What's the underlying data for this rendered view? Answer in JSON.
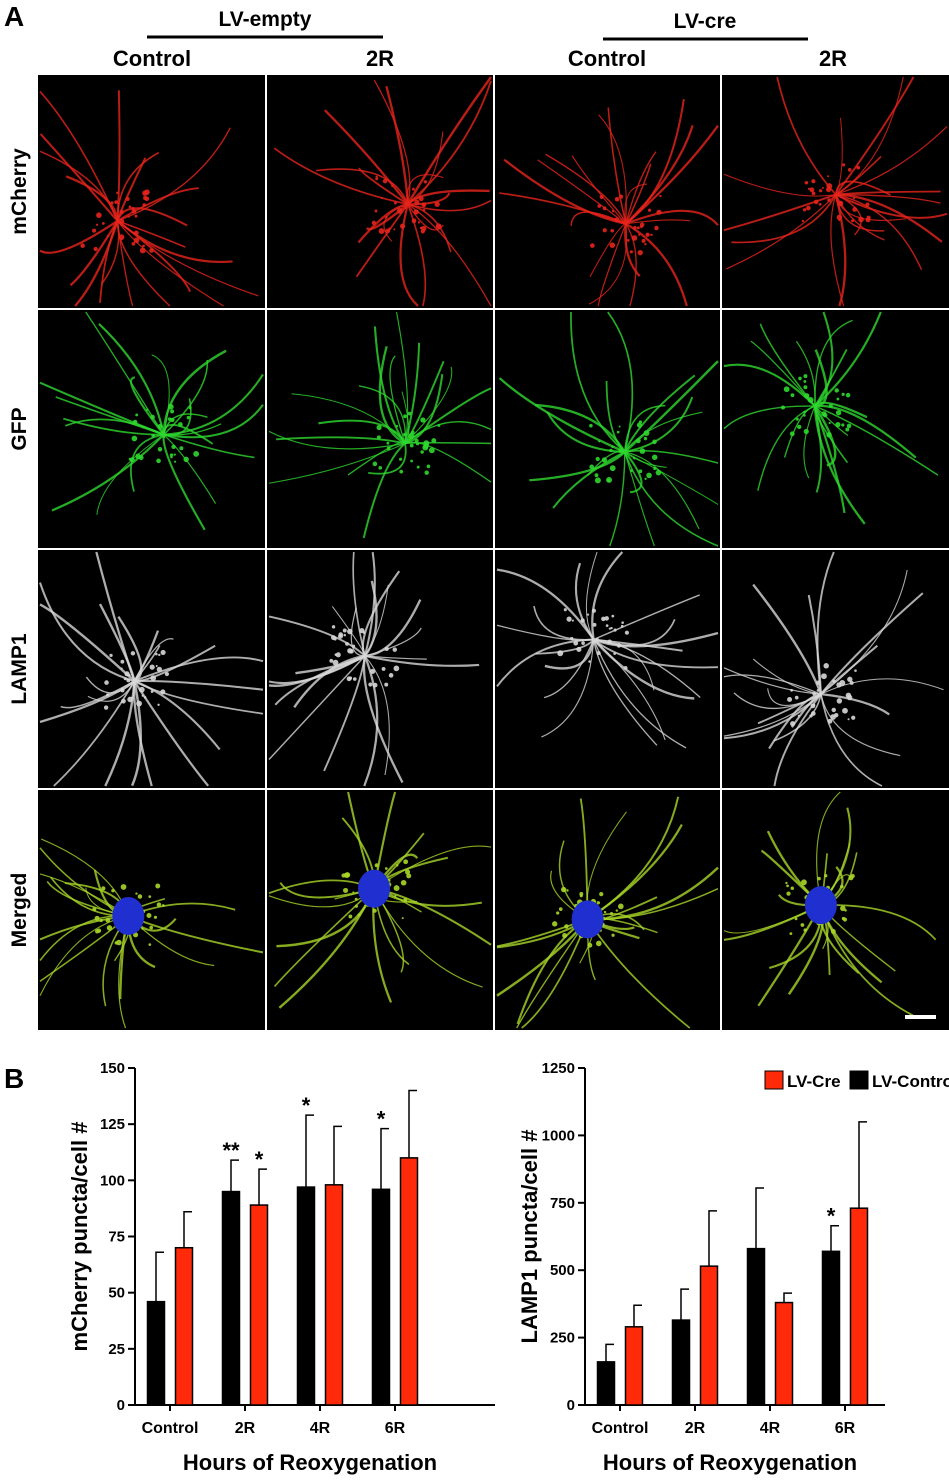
{
  "panel_a": {
    "label": "A",
    "groups": [
      {
        "title": "LV-empty",
        "columns": [
          "Control",
          "2R"
        ]
      },
      {
        "title": "LV-cre",
        "columns": [
          "Control",
          "2R"
        ]
      }
    ],
    "rows": [
      "mCherry",
      "GFP",
      "LAMP1",
      "Merged"
    ]
  },
  "panel_b": {
    "label": "B"
  },
  "chart_data": [
    {
      "type": "bar",
      "ylabel": "mCherry puncta/cell #",
      "xlabel": "Hours of Reoxygenation",
      "categories": [
        "Control",
        "2R",
        "4R",
        "6R"
      ],
      "series": [
        {
          "color": "#000000",
          "values": [
            46,
            95,
            97,
            96
          ],
          "errors": [
            22,
            14,
            32,
            27
          ],
          "annotations": [
            null,
            "**",
            "*",
            "*"
          ]
        },
        {
          "color": "#ff2a0a",
          "values": [
            70,
            89,
            98,
            110
          ],
          "errors": [
            16,
            16,
            26,
            30
          ],
          "annotations": [
            null,
            "*",
            null,
            null
          ]
        }
      ],
      "ylim": [
        0,
        150
      ],
      "yticks": [
        0,
        25,
        50,
        75,
        100,
        125,
        150
      ]
    },
    {
      "type": "bar",
      "ylabel": "LAMP1 puncta/cell #",
      "xlabel": "Hours of Reoxygenation",
      "categories": [
        "Control",
        "2R",
        "4R",
        "6R"
      ],
      "series": [
        {
          "name": "LV-Control",
          "color": "#000000",
          "values": [
            160,
            315,
            580,
            570
          ],
          "errors": [
            65,
            115,
            225,
            95
          ],
          "annotations": [
            null,
            null,
            null,
            "*"
          ]
        },
        {
          "name": "LV-Cre",
          "color": "#ff2a0a",
          "values": [
            290,
            515,
            380,
            730
          ],
          "errors": [
            80,
            205,
            35,
            320
          ],
          "annotations": [
            null,
            null,
            null,
            null
          ]
        }
      ],
      "ylim": [
        0,
        1250
      ],
      "yticks": [
        0,
        250,
        500,
        750,
        1000,
        1250
      ],
      "legend": "top-right"
    }
  ]
}
